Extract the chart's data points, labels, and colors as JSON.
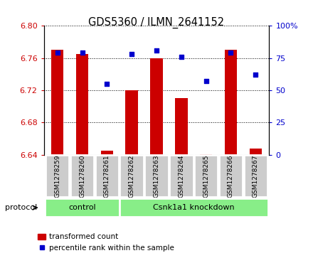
{
  "title": "GDS5360 / ILMN_2641152",
  "samples": [
    "GSM1278259",
    "GSM1278260",
    "GSM1278261",
    "GSM1278262",
    "GSM1278263",
    "GSM1278264",
    "GSM1278265",
    "GSM1278266",
    "GSM1278267"
  ],
  "transformed_counts": [
    6.77,
    6.765,
    6.645,
    6.72,
    6.76,
    6.71,
    6.641,
    6.77,
    6.648
  ],
  "percentile_ranks": [
    79,
    79,
    55,
    78,
    81,
    76,
    57,
    79,
    62
  ],
  "bar_bottom": 6.64,
  "ylim_left": [
    6.64,
    6.8
  ],
  "ylim_right": [
    0,
    100
  ],
  "yticks_left": [
    6.64,
    6.68,
    6.72,
    6.76,
    6.8
  ],
  "yticks_right": [
    0,
    25,
    50,
    75,
    100
  ],
  "bar_color": "#cc0000",
  "dot_color": "#0000cc",
  "n_control": 3,
  "n_knockdown": 6,
  "control_label": "control",
  "knockdown_label": "Csnk1a1 knockdown",
  "protocol_label": "protocol",
  "group_bg_color": "#88ee88",
  "sample_bg_color": "#cccccc",
  "legend_bar_label": "transformed count",
  "legend_dot_label": "percentile rank within the sample"
}
